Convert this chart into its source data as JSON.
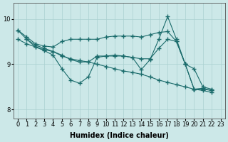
{
  "background_color": "#cce8e8",
  "grid_color": "#aad0d0",
  "line_color": "#1a6b6b",
  "line_width": 0.8,
  "marker": "+",
  "marker_size": 4,
  "marker_ew": 1.0,
  "xlabel": "Humidex (Indice chaleur)",
  "xlabel_fontsize": 7,
  "tick_fontsize": 6,
  "xlim": [
    -0.5,
    23.5
  ],
  "ylim": [
    7.8,
    10.35
  ],
  "yticks": [
    8,
    9,
    10
  ],
  "xticks": [
    0,
    1,
    2,
    3,
    4,
    5,
    6,
    7,
    8,
    9,
    10,
    11,
    12,
    13,
    14,
    15,
    16,
    17,
    18,
    19,
    20,
    21,
    22,
    23
  ],
  "series": [
    {
      "x": [
        0,
        1,
        2,
        3,
        4,
        5,
        6,
        7,
        8,
        9,
        10,
        11,
        12,
        13,
        14,
        15,
        16,
        17,
        18,
        19,
        20,
        21,
        22
      ],
      "y": [
        9.75,
        9.6,
        9.45,
        9.4,
        9.38,
        9.5,
        9.55,
        9.55,
        9.55,
        9.55,
        9.6,
        9.62,
        9.62,
        9.62,
        9.6,
        9.65,
        9.7,
        9.72,
        9.5,
        9.0,
        8.45,
        8.47,
        8.42
      ]
    },
    {
      "x": [
        0,
        1,
        2,
        3,
        4,
        5,
        6,
        7,
        8,
        9,
        10,
        11,
        12,
        13,
        14,
        15,
        16,
        17,
        18,
        19,
        20,
        21,
        22
      ],
      "y": [
        9.75,
        9.55,
        9.38,
        9.3,
        9.2,
        8.9,
        8.65,
        8.58,
        8.72,
        9.15,
        9.18,
        9.2,
        9.18,
        9.15,
        8.88,
        9.1,
        9.55,
        10.05,
        9.55,
        9.0,
        8.45,
        8.45,
        8.42
      ]
    },
    {
      "x": [
        1,
        2,
        3,
        4,
        5,
        6,
        7,
        8,
        9,
        10,
        11,
        12,
        13,
        14,
        15,
        16,
        17,
        18,
        19,
        20,
        21,
        22
      ],
      "y": [
        9.55,
        9.42,
        9.35,
        9.28,
        9.2,
        9.1,
        9.05,
        9.05,
        9.18,
        9.18,
        9.18,
        9.18,
        9.15,
        9.12,
        9.12,
        9.35,
        9.55,
        9.5,
        9.0,
        8.9,
        8.5,
        8.45
      ]
    },
    {
      "x": [
        0,
        1,
        2,
        3,
        4,
        5,
        6,
        7,
        8,
        9,
        10,
        11,
        12,
        13,
        14,
        15,
        16,
        17,
        18,
        19,
        20,
        21,
        22
      ],
      "y": [
        9.55,
        9.45,
        9.38,
        9.32,
        9.28,
        9.18,
        9.12,
        9.08,
        9.05,
        9.0,
        8.95,
        8.9,
        8.85,
        8.82,
        8.78,
        8.72,
        8.65,
        8.6,
        8.55,
        8.5,
        8.45,
        8.42,
        8.38
      ]
    }
  ]
}
